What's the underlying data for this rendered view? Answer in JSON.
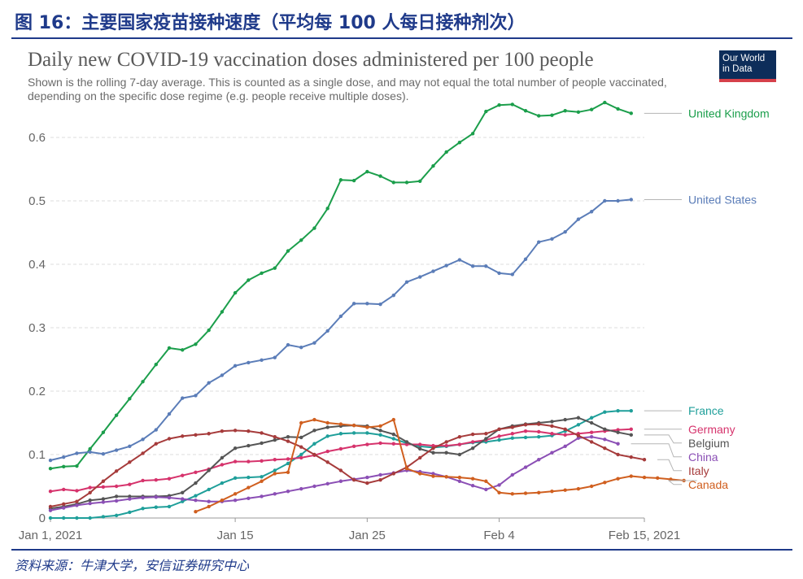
{
  "header": {
    "title": "图 16：主要国家疫苗接种速度（平均每 100 人每日接种剂次）"
  },
  "footer": {
    "source": "资料来源：牛津大学，安信证券研究中心"
  },
  "logo": {
    "line1": "Our World",
    "line2": "in Data"
  },
  "chart_data": {
    "type": "line",
    "title": "Daily new COVID-19 vaccination doses administered per 100 people",
    "subtitle": "Shown is the rolling 7-day average. This is counted as a single dose, and may not equal the total number of people vaccinated, depending on the specific dose regime (e.g. people receive multiple doses).",
    "xlabel": "",
    "ylabel": "",
    "ylim": [
      0,
      0.65
    ],
    "yticks": [
      0,
      0.1,
      0.2,
      0.3,
      0.4,
      0.5,
      0.6
    ],
    "ytick_labels": [
      "0",
      "0.1",
      "0.2",
      "0.3",
      "0.4",
      "0.5",
      "0.6"
    ],
    "xlim": [
      "2021-01-01",
      "2021-02-15"
    ],
    "xticks": [
      "2021-01-01",
      "2021-01-15",
      "2021-01-25",
      "2021-02-04",
      "2021-02-15"
    ],
    "xtick_labels": [
      "Jan 1, 2021",
      "Jan 15",
      "Jan 25",
      "Feb 4",
      "Feb 15, 2021"
    ],
    "grid": "horizontal dashed",
    "legend": "right, labels at line ends",
    "series": [
      {
        "name": "United Kingdom",
        "color": "#1b9e4b",
        "start": "2021-01-01",
        "values": [
          0.078,
          0.081,
          0.082,
          0.109,
          0.135,
          0.162,
          0.188,
          0.215,
          0.242,
          0.268,
          0.265,
          0.274,
          0.296,
          0.325,
          0.355,
          0.375,
          0.386,
          0.394,
          0.421,
          0.438,
          0.457,
          0.488,
          0.533,
          0.532,
          0.546,
          0.539,
          0.529,
          0.529,
          0.531,
          0.555,
          0.577,
          0.592,
          0.606,
          0.641,
          0.651,
          0.652,
          0.642,
          0.634,
          0.635,
          0.642,
          0.64,
          0.644,
          0.655,
          0.645,
          0.638
        ]
      },
      {
        "name": "United States",
        "color": "#5b7db8",
        "start": "2021-01-01",
        "values": [
          0.091,
          0.096,
          0.102,
          0.104,
          0.101,
          0.107,
          0.113,
          0.124,
          0.139,
          0.164,
          0.189,
          0.193,
          0.213,
          0.225,
          0.24,
          0.245,
          0.249,
          0.253,
          0.273,
          0.269,
          0.276,
          0.295,
          0.318,
          0.338,
          0.338,
          0.337,
          0.351,
          0.372,
          0.38,
          0.389,
          0.398,
          0.407,
          0.397,
          0.397,
          0.386,
          0.384,
          0.408,
          0.435,
          0.44,
          0.451,
          0.471,
          0.483,
          0.5,
          0.5,
          0.502
        ]
      },
      {
        "name": "France",
        "color": "#1f9f9a",
        "start": "2021-01-01",
        "values": [
          0.0,
          0.0,
          0.0,
          0.0,
          0.002,
          0.004,
          0.009,
          0.015,
          0.017,
          0.018,
          0.026,
          0.035,
          0.045,
          0.055,
          0.063,
          0.064,
          0.065,
          0.075,
          0.086,
          0.1,
          0.117,
          0.129,
          0.133,
          0.134,
          0.134,
          0.131,
          0.125,
          0.118,
          0.113,
          0.111,
          0.113,
          0.116,
          0.119,
          0.12,
          0.123,
          0.126,
          0.127,
          0.128,
          0.13,
          0.137,
          0.147,
          0.158,
          0.167,
          0.169,
          0.169
        ]
      },
      {
        "name": "Germany",
        "color": "#d6336c",
        "start": "2021-01-01",
        "values": [
          0.042,
          0.045,
          0.043,
          0.048,
          0.049,
          0.05,
          0.053,
          0.059,
          0.06,
          0.062,
          0.067,
          0.072,
          0.077,
          0.084,
          0.089,
          0.089,
          0.09,
          0.092,
          0.093,
          0.095,
          0.099,
          0.105,
          0.109,
          0.113,
          0.116,
          0.118,
          0.117,
          0.116,
          0.116,
          0.114,
          0.114,
          0.116,
          0.12,
          0.123,
          0.129,
          0.133,
          0.137,
          0.136,
          0.133,
          0.131,
          0.133,
          0.135,
          0.137,
          0.139,
          0.14
        ]
      },
      {
        "name": "Belgium",
        "color": "#555555",
        "start": "2021-01-01",
        "values": [
          0.015,
          0.018,
          0.022,
          0.028,
          0.03,
          0.034,
          0.034,
          0.034,
          0.034,
          0.035,
          0.04,
          0.055,
          0.075,
          0.095,
          0.11,
          0.114,
          0.118,
          0.123,
          0.128,
          0.127,
          0.138,
          0.143,
          0.145,
          0.146,
          0.145,
          0.138,
          0.132,
          0.12,
          0.109,
          0.103,
          0.103,
          0.1,
          0.11,
          0.125,
          0.14,
          0.145,
          0.148,
          0.15,
          0.152,
          0.155,
          0.158,
          0.15,
          0.14,
          0.135,
          0.131
        ]
      },
      {
        "name": "China",
        "color": "#8b4fb5",
        "start": "2021-01-01",
        "values": [
          0.012,
          0.016,
          0.02,
          0.023,
          0.025,
          0.027,
          0.03,
          0.032,
          0.033,
          0.032,
          0.03,
          0.028,
          0.026,
          0.026,
          0.028,
          0.031,
          0.034,
          0.038,
          0.042,
          0.046,
          0.05,
          0.054,
          0.058,
          0.061,
          0.064,
          0.068,
          0.071,
          0.075,
          0.073,
          0.07,
          0.065,
          0.058,
          0.051,
          0.045,
          0.052,
          0.068,
          0.08,
          0.092,
          0.103,
          0.113,
          0.126,
          0.128,
          0.124,
          0.117
        ]
      },
      {
        "name": "Italy",
        "color": "#a63b3b",
        "start": "2021-01-01",
        "values": [
          0.018,
          0.022,
          0.026,
          0.04,
          0.058,
          0.074,
          0.088,
          0.102,
          0.117,
          0.125,
          0.129,
          0.131,
          0.133,
          0.137,
          0.138,
          0.137,
          0.134,
          0.128,
          0.121,
          0.112,
          0.1,
          0.088,
          0.075,
          0.06,
          0.055,
          0.06,
          0.07,
          0.08,
          0.095,
          0.11,
          0.12,
          0.128,
          0.132,
          0.133,
          0.14,
          0.143,
          0.147,
          0.148,
          0.145,
          0.14,
          0.13,
          0.12,
          0.11,
          0.1,
          0.096,
          0.092
        ]
      },
      {
        "name": "Canada",
        "color": "#d05f1f",
        "start": "2021-01-12",
        "values": [
          0.01,
          0.018,
          0.028,
          0.038,
          0.048,
          0.058,
          0.07,
          0.072,
          0.15,
          0.155,
          0.15,
          0.148,
          0.146,
          0.143,
          0.145,
          0.155,
          0.078,
          0.07,
          0.066,
          0.065,
          0.064,
          0.062,
          0.058,
          0.04,
          0.038,
          0.039,
          0.04,
          0.042,
          0.044,
          0.046,
          0.05,
          0.056,
          0.062,
          0.066,
          0.064,
          0.063,
          0.061,
          0.059
        ]
      }
    ]
  }
}
